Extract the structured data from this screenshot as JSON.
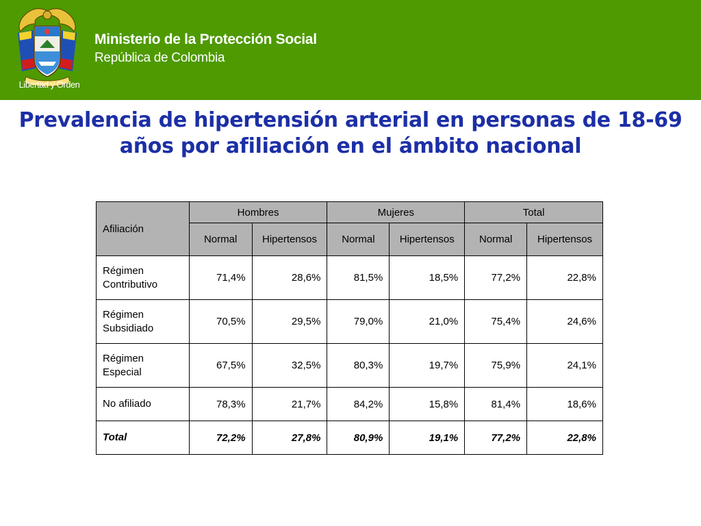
{
  "header": {
    "ministry": "Ministerio de la Protección Social",
    "republic": "República de Colombia",
    "motto": "Libertad y Orden",
    "emblem_icon": "colombia-coat-of-arms-icon",
    "background_color": "#4e9a00"
  },
  "title": "Prevalencia de hipertensión arterial en personas de 18-69 años por afiliación en el ámbito nacional",
  "title_color": "#1c2fa6",
  "table": {
    "row_header": "Afiliación",
    "groups": [
      "Hombres",
      "Mujeres",
      "Total"
    ],
    "subheaders": [
      "Normal",
      "Hipertensos",
      "Normal",
      "Hipertensos",
      "Normal",
      "Hipertensos"
    ],
    "rows": [
      {
        "label": "Régimen Contributivo",
        "values": [
          "71,4%",
          "28,6%",
          "81,5%",
          "18,5%",
          "77,2%",
          "22,8%"
        ]
      },
      {
        "label": "Régimen Subsidiado",
        "values": [
          "70,5%",
          "29,5%",
          "79,0%",
          "21,0%",
          "75,4%",
          "24,6%"
        ]
      },
      {
        "label": "Régimen Especial",
        "values": [
          "67,5%",
          "32,5%",
          "80,3%",
          "19,7%",
          "75,9%",
          "24,1%"
        ]
      },
      {
        "label": "No afiliado",
        "values": [
          "78,3%",
          "21,7%",
          "84,2%",
          "15,8%",
          "81,4%",
          "18,6%"
        ]
      }
    ],
    "total": {
      "label": "Total",
      "values": [
        "72,2%",
        "27,8%",
        "80,9%",
        "19,1%",
        "77,2%",
        "22,8%"
      ]
    }
  }
}
